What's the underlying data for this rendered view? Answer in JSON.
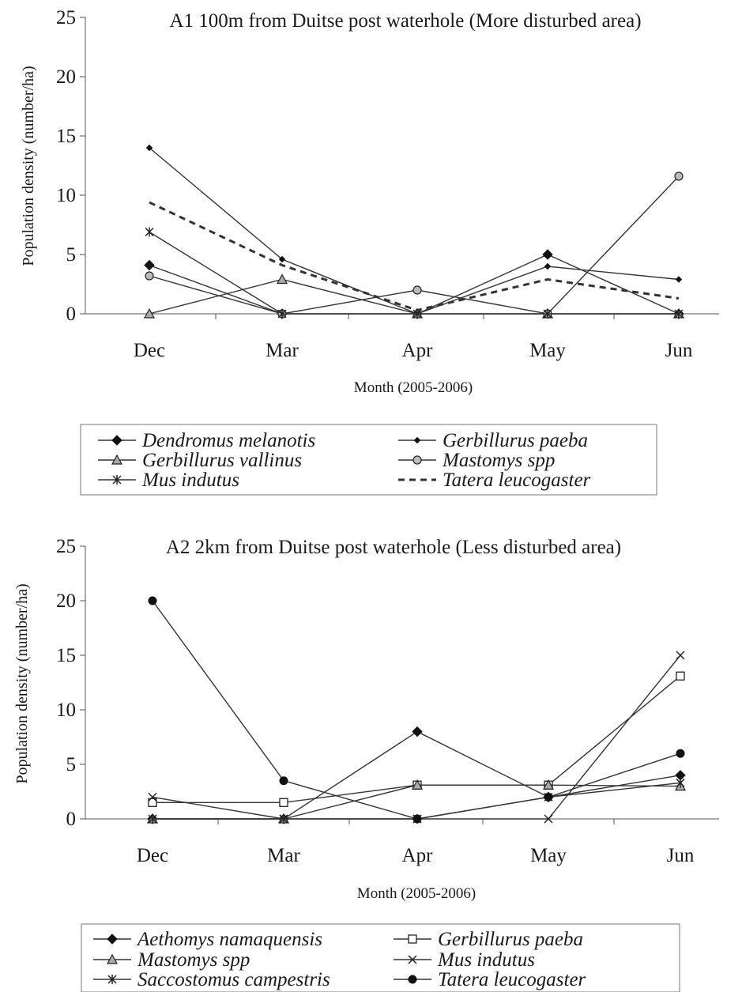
{
  "chart_data": [
    {
      "type": "line",
      "title": "A1 100m from Duitse post waterhole (More disturbed area)",
      "xlabel": "Month (2005-2006)",
      "ylabel": "Population density (number/ha)",
      "categories": [
        "Dec",
        "Mar",
        "Apr",
        "May",
        "Jun"
      ],
      "ylim": [
        0,
        25
      ],
      "yticks": [
        0,
        5,
        10,
        15,
        20,
        25
      ],
      "grid": false,
      "legend_position": "bottom",
      "series": [
        {
          "name": "Dendromus melanotis",
          "values": [
            4.1,
            0,
            0,
            5,
            0
          ],
          "marker": "diamond",
          "dash": false,
          "color": "#333333"
        },
        {
          "name": "Gerbillurus paeba",
          "values": [
            14,
            4.6,
            0,
            4,
            2.9
          ],
          "marker": "small-diamond",
          "dash": false,
          "color": "#333333"
        },
        {
          "name": "Gerbillurus vallinus",
          "values": [
            0,
            2.9,
            0,
            0,
            0
          ],
          "marker": "triangle",
          "dash": false,
          "color": "#333333"
        },
        {
          "name": "Mastomys spp",
          "values": [
            3.2,
            0,
            2,
            0,
            11.6
          ],
          "marker": "circle-gray",
          "dash": false,
          "color": "#333333"
        },
        {
          "name": "Mus indutus",
          "values": [
            6.9,
            0,
            0,
            0,
            0
          ],
          "marker": "asterisk",
          "dash": false,
          "color": "#333333"
        },
        {
          "name": "Tatera leucogaster",
          "values": [
            9.4,
            4.1,
            0.3,
            2.9,
            1.3
          ],
          "marker": "dash",
          "dash": true,
          "color": "#333333"
        }
      ]
    },
    {
      "type": "line",
      "title": "A2 2km from Duitse post waterhole (Less disturbed area)",
      "xlabel": "Month (2005-2006)",
      "ylabel": "Population density (number/ha)",
      "categories": [
        "Dec",
        "Mar",
        "Apr",
        "May",
        "Jun"
      ],
      "ylim": [
        0,
        25
      ],
      "yticks": [
        0,
        5,
        10,
        15,
        20,
        25
      ],
      "grid": false,
      "legend_position": "bottom",
      "series": [
        {
          "name": "Aethomys namaquensis",
          "values": [
            0,
            0,
            8,
            2,
            4
          ],
          "marker": "diamond",
          "dash": false,
          "color": "#333333"
        },
        {
          "name": "Gerbillurus paeba",
          "values": [
            1.5,
            1.5,
            3.1,
            3.1,
            13.1
          ],
          "marker": "square-open",
          "dash": false,
          "color": "#333333"
        },
        {
          "name": "Mastomys spp",
          "values": [
            0,
            0,
            3.1,
            3.1,
            3
          ],
          "marker": "triangle",
          "dash": false,
          "color": "#333333"
        },
        {
          "name": "Mus indutus",
          "values": [
            2,
            0,
            0,
            0,
            15
          ],
          "marker": "x",
          "dash": false,
          "color": "#333333"
        },
        {
          "name": "Saccostomus campestris",
          "values": [
            0,
            0,
            0,
            2,
            3.3
          ],
          "marker": "asterisk",
          "dash": false,
          "color": "#333333"
        },
        {
          "name": "Tatera leucogaster",
          "values": [
            20,
            3.5,
            0,
            2,
            6
          ],
          "marker": "circle-filled",
          "dash": false,
          "color": "#333333"
        }
      ]
    }
  ]
}
